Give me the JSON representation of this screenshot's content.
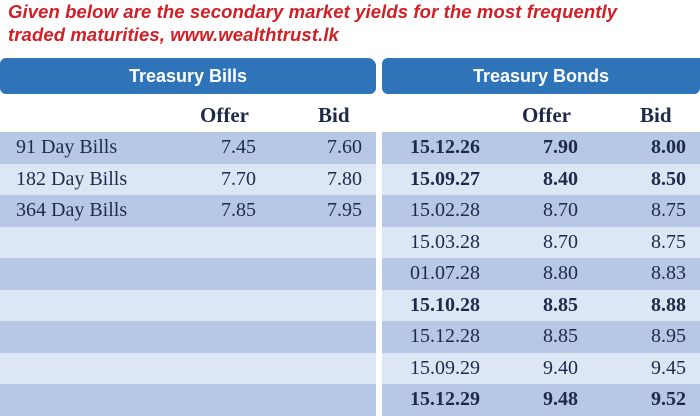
{
  "caption": {
    "line1": "Given below are the secondary market yields for the most frequently",
    "line2": "traded maturities, www.wealthtrust.lk"
  },
  "bills": {
    "title": "Treasury Bills",
    "col_offer": "Offer",
    "col_bid": "Bid",
    "rows": [
      {
        "label": "91 Day Bills",
        "offer": "7.45",
        "bid": "7.60"
      },
      {
        "label": "182 Day Bills",
        "offer": "7.70",
        "bid": "7.80"
      },
      {
        "label": "364 Day Bills",
        "offer": "7.85",
        "bid": "7.95"
      }
    ]
  },
  "bonds": {
    "title": "Treasury Bonds",
    "col_offer": "Offer",
    "col_bid": "Bid",
    "rows": [
      {
        "maturity": "15.12.26",
        "offer": "7.90",
        "bid": "8.00",
        "bold": true
      },
      {
        "maturity": "15.09.27",
        "offer": "8.40",
        "bid": "8.50",
        "bold": true
      },
      {
        "maturity": "15.02.28",
        "offer": "8.70",
        "bid": "8.75",
        "bold": false
      },
      {
        "maturity": "15.03.28",
        "offer": "8.70",
        "bid": "8.75",
        "bold": false
      },
      {
        "maturity": "01.07.28",
        "offer": "8.80",
        "bid": "8.83",
        "bold": false
      },
      {
        "maturity": "15.10.28",
        "offer": "8.85",
        "bid": "8.88",
        "bold": true
      },
      {
        "maturity": "15.12.28",
        "offer": "8.85",
        "bid": "8.95",
        "bold": false
      },
      {
        "maturity": "15.09.29",
        "offer": "9.40",
        "bid": "9.45",
        "bold": false
      },
      {
        "maturity": "15.12.29",
        "offer": "9.48",
        "bid": "9.52",
        "bold": true
      }
    ]
  }
}
